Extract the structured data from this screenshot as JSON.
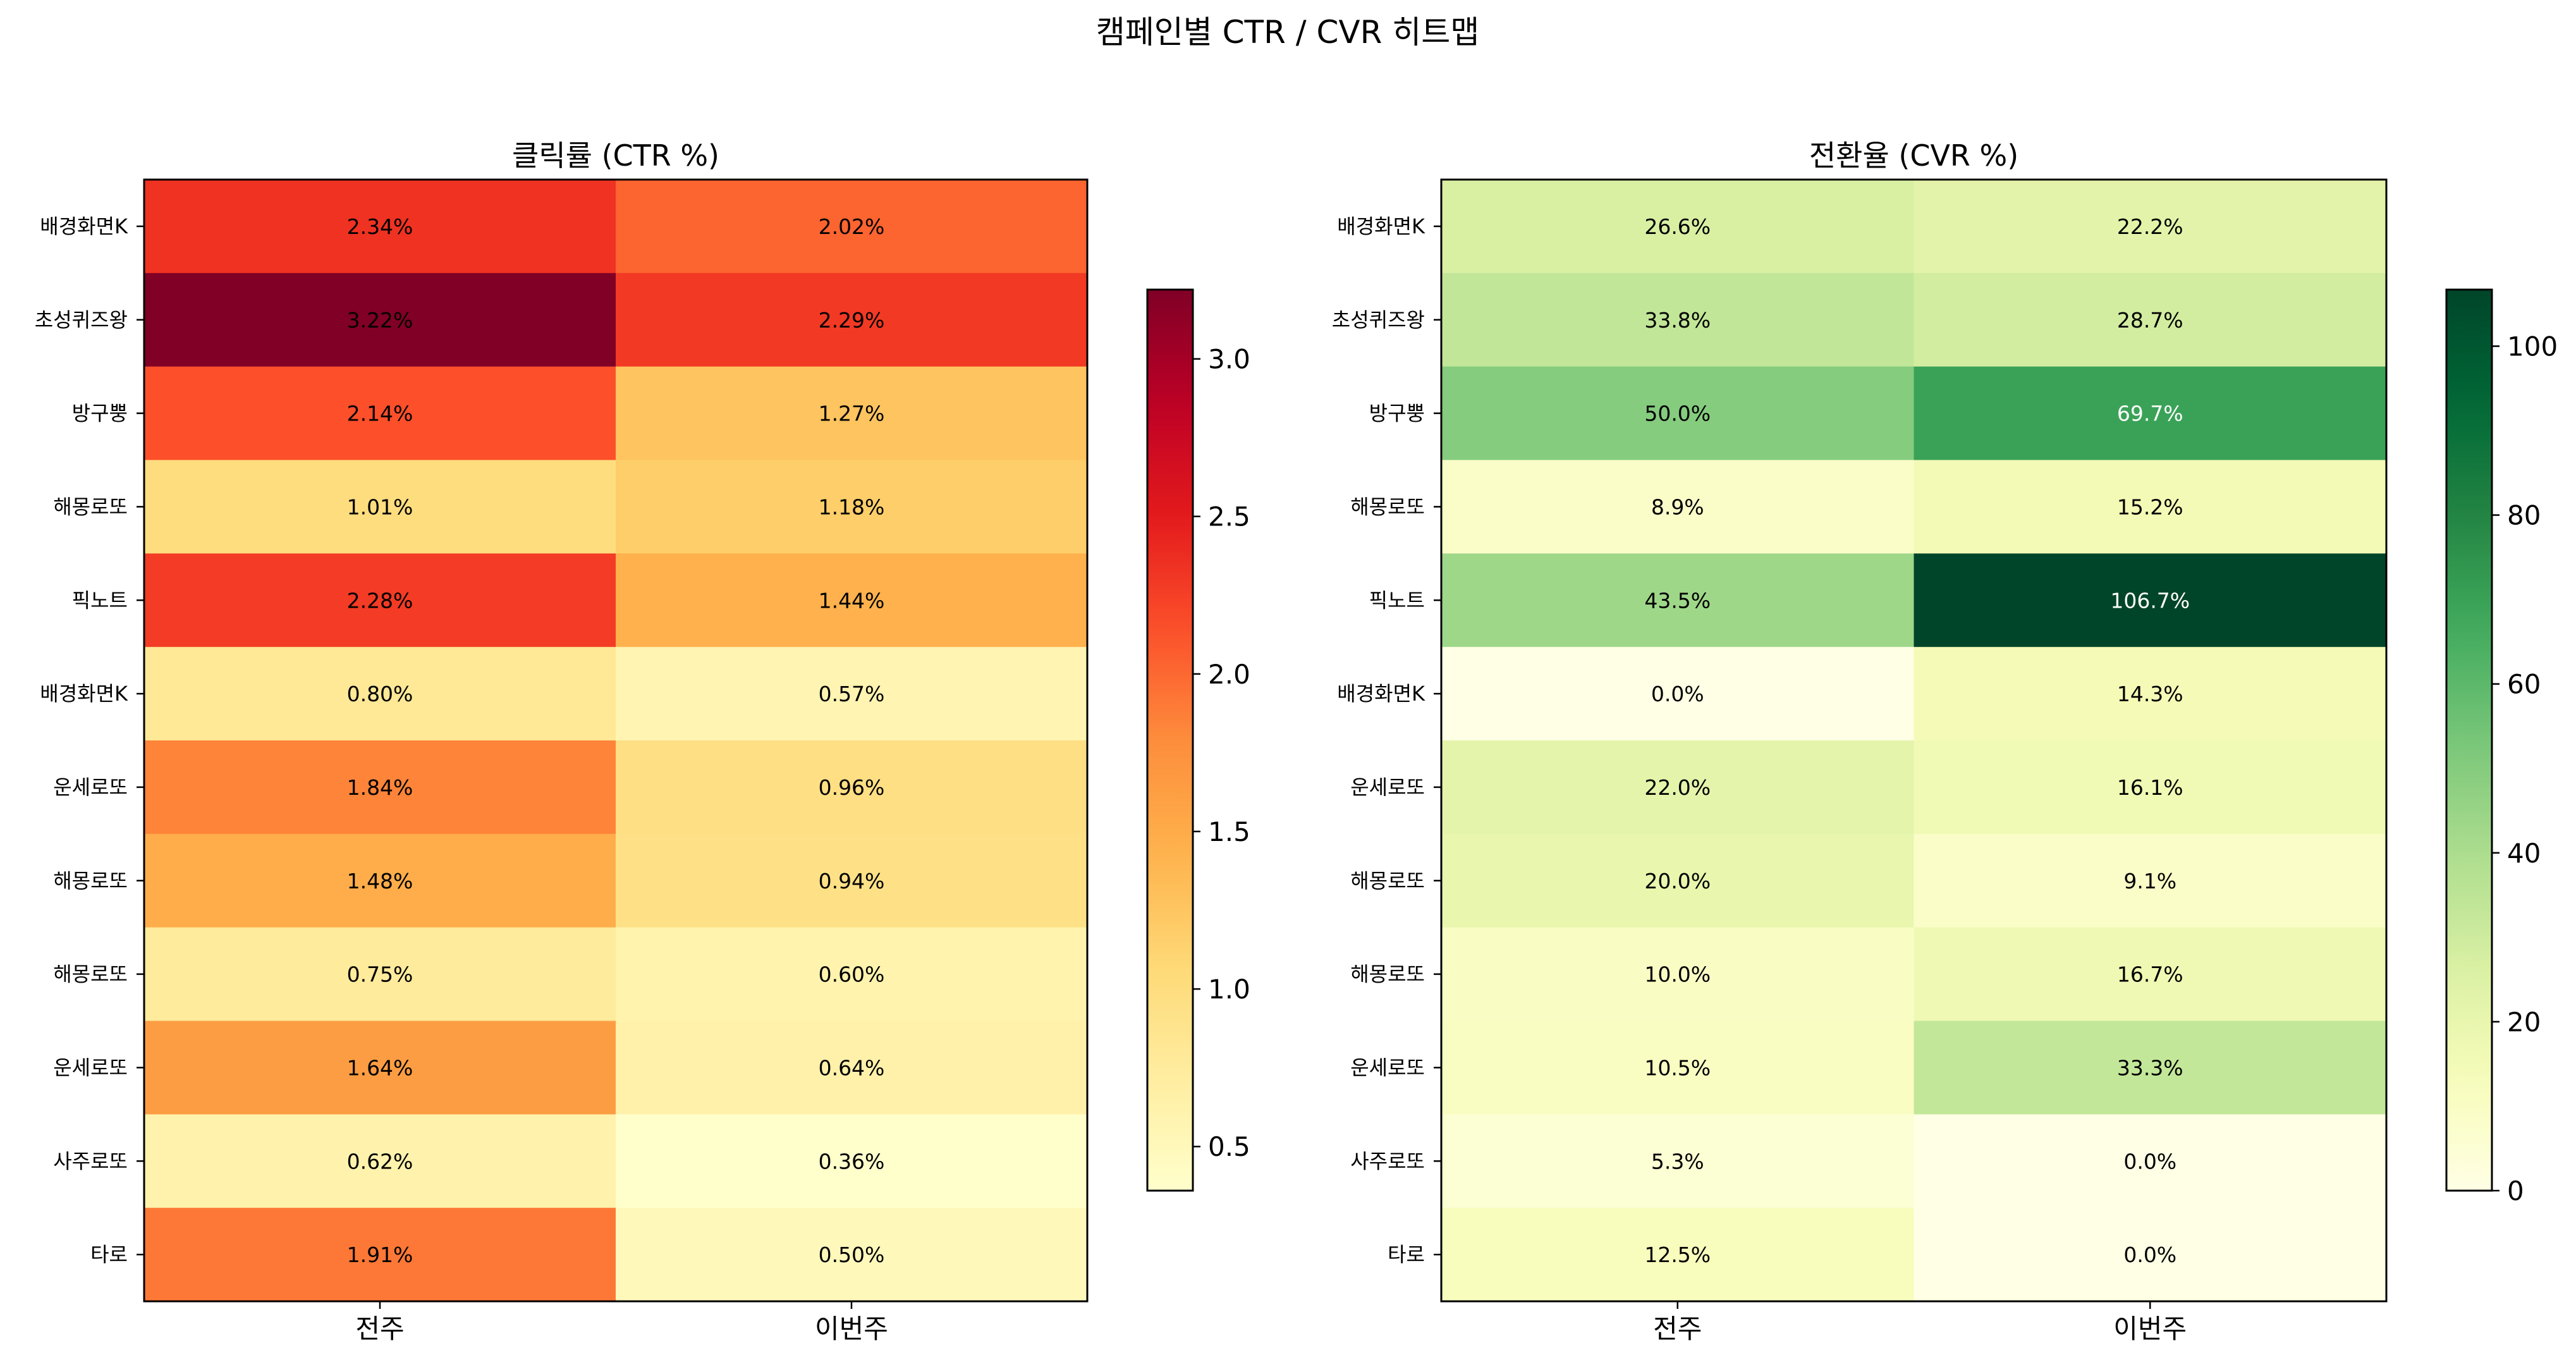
{
  "figure": {
    "suptitle": "캠페인별 CTR / CVR 히트맵"
  },
  "chart_data": [
    {
      "type": "heatmap",
      "title": "클릭률 (CTR %)",
      "colormap": "YlOrRd",
      "columns": [
        "전주",
        "이번주"
      ],
      "rows": [
        "배경화면K",
        "초성퀴즈왕",
        "방구뿡",
        "해몽로또",
        "픽노트",
        "배경화면K",
        "운세로또",
        "해몽로또",
        "해몽로또",
        "운세로또",
        "사주로또",
        "타로"
      ],
      "values": [
        [
          2.34,
          2.02
        ],
        [
          3.22,
          2.29
        ],
        [
          2.14,
          1.27
        ],
        [
          1.01,
          1.18
        ],
        [
          2.28,
          1.44
        ],
        [
          0.8,
          0.57
        ],
        [
          1.84,
          0.96
        ],
        [
          1.48,
          0.94
        ],
        [
          0.75,
          0.6
        ],
        [
          1.64,
          0.64
        ],
        [
          0.62,
          0.36
        ],
        [
          1.91,
          0.5
        ]
      ],
      "labels": [
        [
          "2.34%",
          "2.02%"
        ],
        [
          "3.22%",
          "2.29%"
        ],
        [
          "2.14%",
          "1.27%"
        ],
        [
          "1.01%",
          "1.18%"
        ],
        [
          "2.28%",
          "1.44%"
        ],
        [
          "0.80%",
          "0.57%"
        ],
        [
          "1.84%",
          "0.96%"
        ],
        [
          "1.48%",
          "0.94%"
        ],
        [
          "0.75%",
          "0.60%"
        ],
        [
          "1.64%",
          "0.64%"
        ],
        [
          "0.62%",
          "0.36%"
        ],
        [
          "1.91%",
          "0.50%"
        ]
      ],
      "colorbar": {
        "min": 0.36,
        "max": 3.22,
        "ticks": [
          0.5,
          1.0,
          1.5,
          2.0,
          2.5,
          3.0
        ],
        "tick_labels": [
          "0.5",
          "1.0",
          "1.5",
          "2.0",
          "2.5",
          "3.0"
        ]
      }
    },
    {
      "type": "heatmap",
      "title": "전환율 (CVR %)",
      "colormap": "YlGn",
      "columns": [
        "전주",
        "이번주"
      ],
      "rows": [
        "배경화면K",
        "초성퀴즈왕",
        "방구뿡",
        "해몽로또",
        "픽노트",
        "배경화면K",
        "운세로또",
        "해몽로또",
        "해몽로또",
        "운세로또",
        "사주로또",
        "타로"
      ],
      "values": [
        [
          26.6,
          22.2
        ],
        [
          33.8,
          28.7
        ],
        [
          50.0,
          69.7
        ],
        [
          8.9,
          15.2
        ],
        [
          43.5,
          106.7
        ],
        [
          0.0,
          14.3
        ],
        [
          22.0,
          16.1
        ],
        [
          20.0,
          9.1
        ],
        [
          10.0,
          16.7
        ],
        [
          10.5,
          33.3
        ],
        [
          5.3,
          0.0
        ],
        [
          12.5,
          0.0
        ]
      ],
      "labels": [
        [
          "26.6%",
          "22.2%"
        ],
        [
          "33.8%",
          "28.7%"
        ],
        [
          "50.0%",
          "69.7%"
        ],
        [
          "8.9%",
          "15.2%"
        ],
        [
          "43.5%",
          "106.7%"
        ],
        [
          "0.0%",
          "14.3%"
        ],
        [
          "22.0%",
          "16.1%"
        ],
        [
          "20.0%",
          "9.1%"
        ],
        [
          "10.0%",
          "16.7%"
        ],
        [
          "10.5%",
          "33.3%"
        ],
        [
          "5.3%",
          "0.0%"
        ],
        [
          "12.5%",
          "0.0%"
        ]
      ],
      "colorbar": {
        "min": 0,
        "max": 106.7,
        "ticks": [
          0,
          20,
          40,
          60,
          80,
          100
        ],
        "tick_labels": [
          "0",
          "20",
          "40",
          "60",
          "80",
          "100"
        ]
      }
    }
  ]
}
